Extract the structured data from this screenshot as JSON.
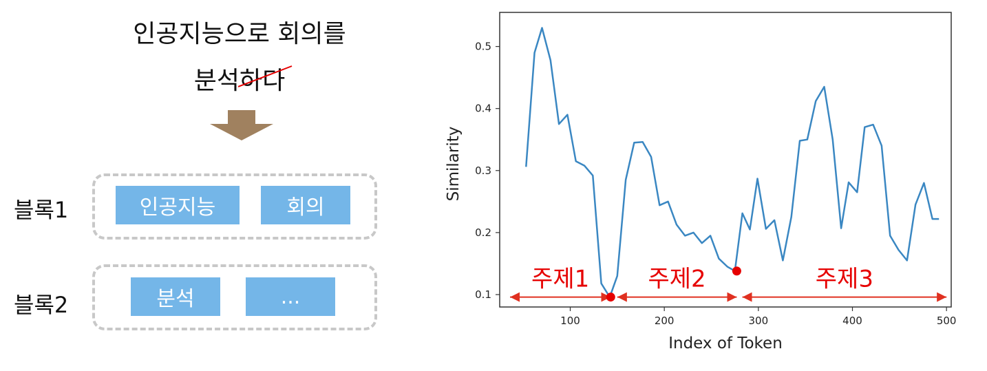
{
  "sentence": {
    "line1": "인공지능으로 회의를",
    "line2_kept": "분석",
    "line2_struck": "하다"
  },
  "blocks": [
    {
      "label": "블록1",
      "tokens": [
        "인공지능",
        "회의"
      ]
    },
    {
      "label": "블록2",
      "tokens": [
        "분석",
        "..."
      ]
    }
  ],
  "colors": {
    "token_fill": "#74b6e8",
    "arrow_fill": "#a0815f",
    "line": "#3a87c2",
    "highlight": "#e60000",
    "frame": "#c8c8c8"
  },
  "chart_data": {
    "type": "line",
    "xlabel": "Index of Token",
    "ylabel": "Similarity",
    "xlim": [
      25,
      505
    ],
    "ylim": [
      0.08,
      0.555
    ],
    "xticks": [
      100,
      200,
      300,
      400,
      500
    ],
    "yticks": [
      0.1,
      0.2,
      0.3,
      0.4,
      0.5
    ],
    "grid": false,
    "series": [
      {
        "x": [
          53,
          62,
          70,
          79,
          88,
          97,
          106,
          115,
          124,
          133,
          142,
          150,
          159,
          168,
          177,
          186,
          195,
          204,
          213,
          222,
          231,
          240,
          249,
          258,
          267,
          275,
          283,
          291,
          299,
          308,
          317,
          326,
          335,
          344,
          352,
          361,
          370,
          379,
          388,
          396,
          405,
          413,
          422,
          431,
          440,
          449,
          458,
          467,
          476,
          485,
          492
        ],
        "values": [
          0.306,
          0.49,
          0.53,
          0.478,
          0.375,
          0.39,
          0.315,
          0.308,
          0.292,
          0.118,
          0.096,
          0.13,
          0.285,
          0.345,
          0.346,
          0.322,
          0.244,
          0.25,
          0.213,
          0.195,
          0.2,
          0.183,
          0.195,
          0.158,
          0.145,
          0.138,
          0.231,
          0.205,
          0.287,
          0.206,
          0.22,
          0.155,
          0.225,
          0.348,
          0.35,
          0.412,
          0.435,
          0.35,
          0.207,
          0.281,
          0.265,
          0.37,
          0.374,
          0.34,
          0.195,
          0.172,
          0.155,
          0.245,
          0.28,
          0.222,
          0.222
        ]
      }
    ],
    "highlight_points": [
      {
        "x": 143,
        "y": 0.096
      },
      {
        "x": 277,
        "y": 0.138
      }
    ],
    "segments": [
      {
        "label": "주제1",
        "x_start": 36,
        "x_end": 143,
        "y": 0.096
      },
      {
        "label": "주제2",
        "x_start": 150,
        "x_end": 277,
        "y": 0.096
      },
      {
        "label": "주제3",
        "x_start": 283,
        "x_end": 500,
        "y": 0.096
      }
    ]
  }
}
